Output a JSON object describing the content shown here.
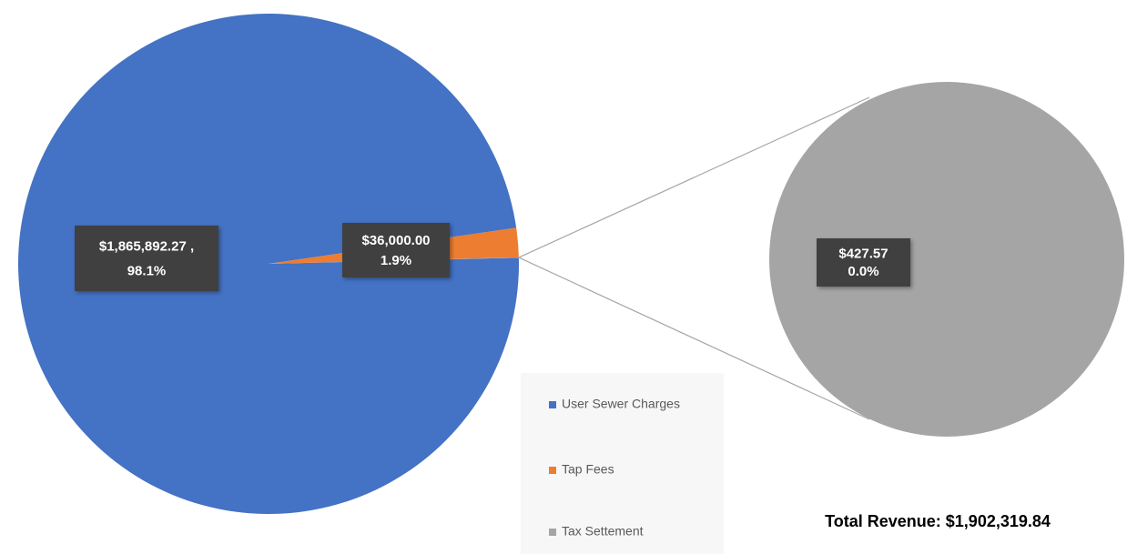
{
  "chart_data": {
    "type": "pie",
    "categories": [
      "User Sewer Charges",
      "Tap Fees",
      "Tax Settement"
    ],
    "values": [
      1865892.27,
      36000,
      427.57
    ],
    "colors": [
      "#4472c4",
      "#ed7d31",
      "#a5a5a5"
    ],
    "value_labels": [
      [
        "$1,865,892.27 ,",
        "98.1%"
      ],
      [
        "$36,000.00",
        "1.9%"
      ],
      [
        "$427.57",
        "0.0%"
      ]
    ],
    "annotation": "Total Revenue: $1,902,319.84",
    "legend": "bottom"
  }
}
